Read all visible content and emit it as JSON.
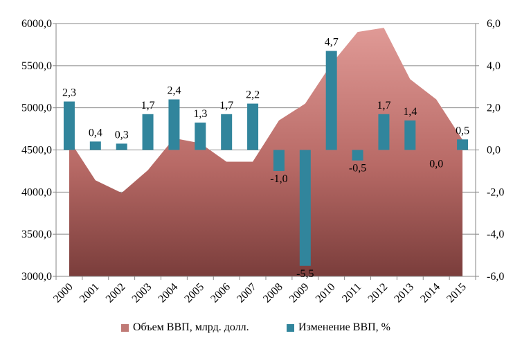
{
  "chart_data": {
    "type": "bar+area",
    "categories": [
      "2000",
      "2001",
      "2002",
      "2003",
      "2004",
      "2005",
      "2006",
      "2007",
      "2008",
      "2009",
      "2010",
      "2011",
      "2012",
      "2013",
      "2014",
      "2015"
    ],
    "series": [
      {
        "name": "Объем ВВП, млрд. долл.",
        "type": "area",
        "axis": "left",
        "values": [
          4620,
          4140,
          3990,
          4260,
          4640,
          4580,
          4360,
          4360,
          4850,
          5050,
          5520,
          5900,
          5950,
          5340,
          5100,
          4620
        ],
        "color": "#b05a5a"
      },
      {
        "name": "Изменение ВВП, %",
        "type": "bar",
        "axis": "right",
        "values": [
          2.3,
          0.4,
          0.3,
          1.7,
          2.4,
          1.3,
          1.7,
          2.2,
          -1.0,
          -5.5,
          4.7,
          -0.5,
          1.7,
          1.4,
          0.0,
          0.5
        ],
        "labels": [
          "2,3",
          "0,4",
          "0,3",
          "1,7",
          "2,4",
          "1,3",
          "1,7",
          "2,2",
          "-1,0",
          "-5,5",
          "4,7",
          "-0,5",
          "1,7",
          "1,4",
          "0,0",
          "0,5"
        ],
        "color": "#31859c"
      }
    ],
    "y_left": {
      "min": 3000,
      "max": 6000,
      "ticks": [
        "3000,0",
        "3500,0",
        "4000,0",
        "4500,0",
        "5000,0",
        "5500,0",
        "6000,0"
      ]
    },
    "y_right": {
      "min": -6,
      "max": 6,
      "ticks": [
        "-6,0",
        "-4,0",
        "-2,0",
        "0,0",
        "2,0",
        "4,0",
        "6,0"
      ]
    },
    "legend_position": "bottom",
    "grid": "horizontal"
  },
  "legend": {
    "area_label": "Объем ВВП, млрд. долл.",
    "bar_label": "Изменение ВВП, %"
  }
}
